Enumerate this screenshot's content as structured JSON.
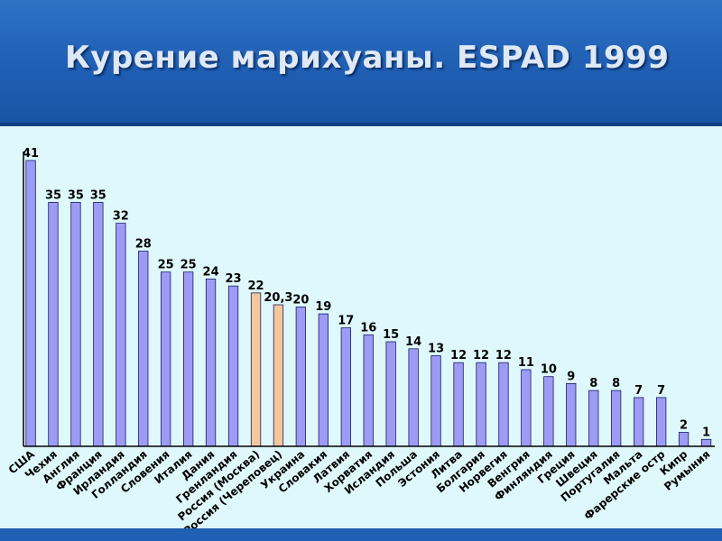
{
  "header": {
    "title": "Курение марихуаны. ESPAD 1999"
  },
  "colors": {
    "bar": "#9c9cf4",
    "highlight": "#f6c79c",
    "background": "#dff8fb",
    "header": "#1f5fb4"
  },
  "chart_data": {
    "type": "bar",
    "title": "Курение марихуаны. ESPAD 1999",
    "xlabel": "",
    "ylabel": "",
    "ylim": [
      0,
      41
    ],
    "grid": false,
    "categories": [
      "США",
      "Чехия",
      "Англия",
      "Франция",
      "Ирландия",
      "Голландия",
      "Словения",
      "Италия",
      "Дания",
      "Гренландия",
      "Россия (Москва)",
      "Россия (Череповец)",
      "Украина",
      "Словакия",
      "Латвия",
      "Хорватия",
      "Исландия",
      "Польша",
      "Эстония",
      "Литва",
      "Болгария",
      "Норвегия",
      "Венгрия",
      "Финляндия",
      "Греция",
      "Швеция",
      "Португалия",
      "Мальта",
      "Фарерские остр",
      "Кипр",
      "Румыния"
    ],
    "values": [
      41,
      35,
      35,
      35,
      32,
      28,
      25,
      25,
      24,
      23,
      22,
      20.3,
      20,
      19,
      17,
      16,
      15,
      14,
      13,
      12,
      12,
      12,
      11,
      10,
      9,
      8,
      8,
      7,
      7,
      2,
      1
    ],
    "value_labels": [
      "41",
      "35",
      "35",
      "35",
      "32",
      "28",
      "25",
      "25",
      "24",
      "23",
      "22",
      "20,3",
      "20",
      "19",
      "17",
      "16",
      "15",
      "14",
      "13",
      "12",
      "12",
      "12",
      "11",
      "10",
      "9",
      "8",
      "8",
      "7",
      "7",
      "2",
      "1"
    ],
    "highlighted": [
      "Россия (Москва)",
      "Россия (Череповец)"
    ]
  }
}
